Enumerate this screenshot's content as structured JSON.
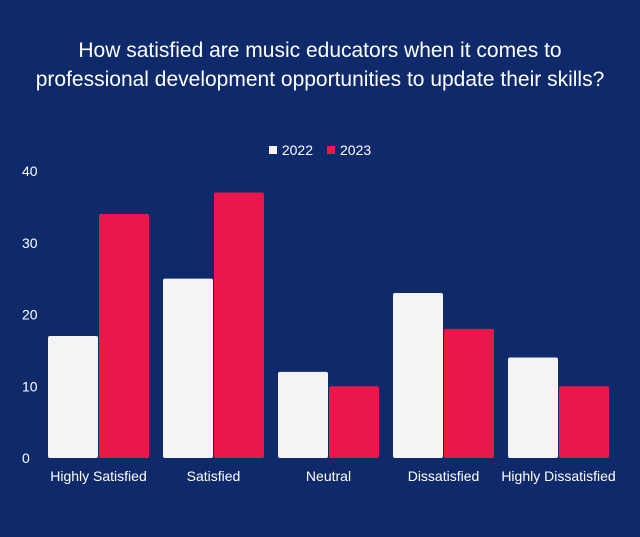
{
  "chart_data": {
    "type": "bar",
    "title_lines": [
      "How satisfied are music educators when it comes to",
      "professional development opportunities to update their skills?"
    ],
    "categories": [
      "Highly Satisfied",
      "Satisfied",
      "Neutral",
      "Dissatisfied",
      "Highly Dissatisfied"
    ],
    "series": [
      {
        "name": "2022",
        "color": "#f4f4f6",
        "values": [
          17,
          25,
          12,
          23,
          14
        ]
      },
      {
        "name": "2023",
        "color": "#e8194a",
        "values": [
          34,
          37,
          10,
          18,
          10
        ]
      }
    ],
    "yticks": [
      0,
      10,
      20,
      30,
      40
    ],
    "ylim": [
      0,
      40
    ],
    "legend_position": "top-center",
    "grid": false
  },
  "colors": {
    "background": "#0f2a6b",
    "text": "#ffffff"
  }
}
